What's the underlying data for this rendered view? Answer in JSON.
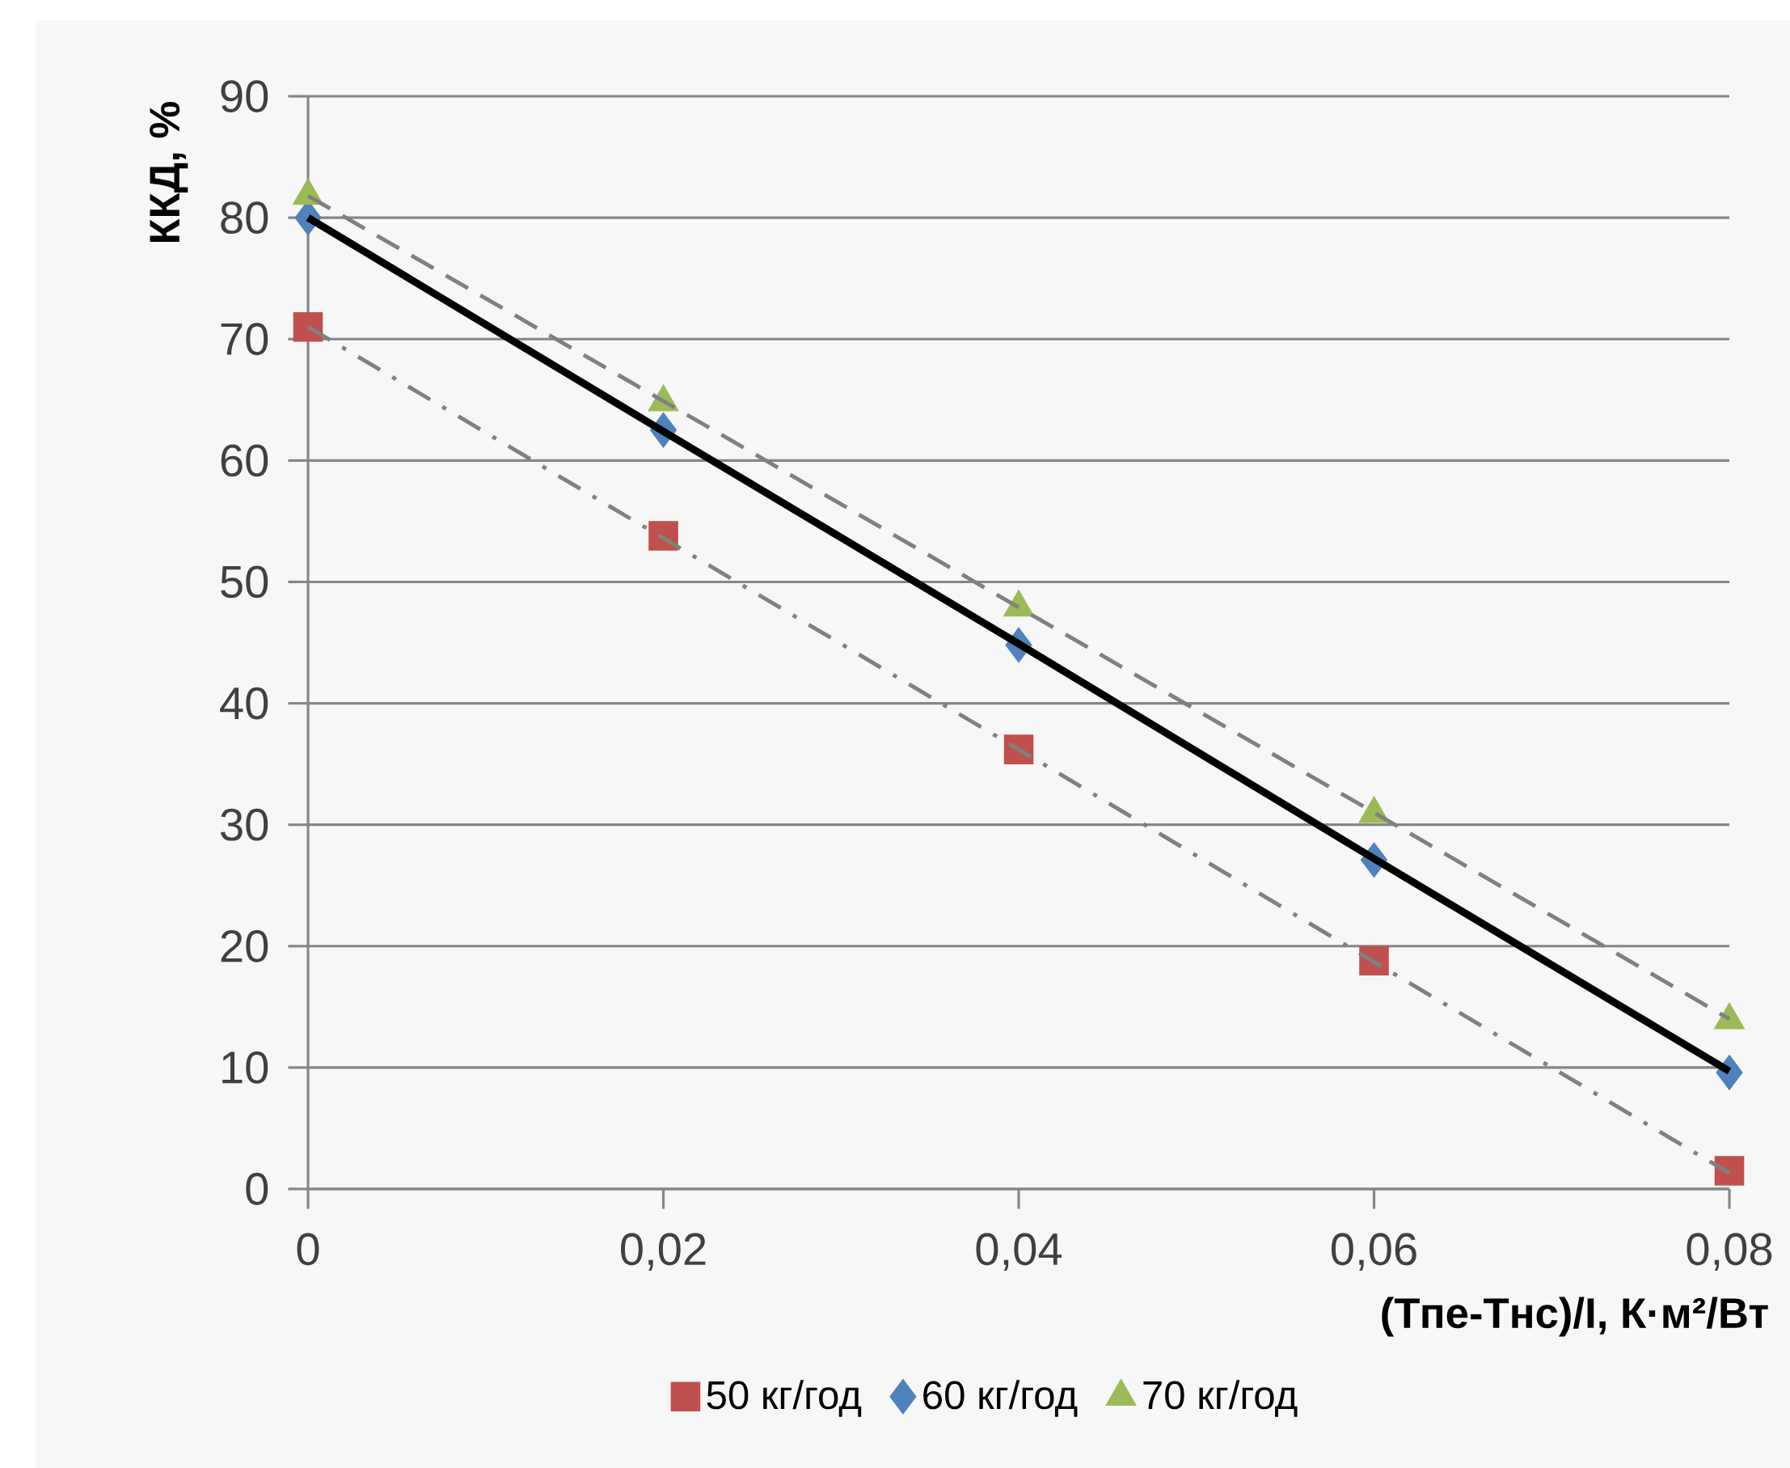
{
  "chart_data": {
    "type": "scatter",
    "xlabel": "(Тпе-Тнс)/I, К·м²/Вт",
    "ylabel": "ККД, %",
    "xlim": [
      0,
      0.08
    ],
    "ylim": [
      0,
      90
    ],
    "xticks": [
      0,
      {
        "value": 0.02,
        "label": "0,02"
      },
      {
        "value": 0.04,
        "label": "0,04"
      },
      {
        "value": 0.06,
        "label": "0,06"
      },
      {
        "value": 0.08,
        "label": "0,08"
      }
    ],
    "yticks": [
      0,
      10,
      20,
      30,
      40,
      50,
      60,
      70,
      80,
      90
    ],
    "grid": "y",
    "legend": "bottom",
    "x": [
      0,
      0.02,
      0.04,
      0.06,
      0.08
    ],
    "series": [
      {
        "name": "50 кг/год",
        "color": "#c0504d",
        "marker": "square",
        "values": [
          71.0,
          53.8,
          36.2,
          18.8,
          1.5
        ]
      },
      {
        "name": "60 кг/год",
        "color": "#4f81bd",
        "marker": "diamond",
        "values": [
          80.0,
          62.5,
          44.8,
          27.1,
          9.6
        ]
      },
      {
        "name": "70 кг/год",
        "color": "#9bbb59",
        "marker": "triangle",
        "values": [
          81.8,
          64.8,
          47.9,
          30.9,
          13.9
        ]
      },
      {
        "type": "line",
        "color": "#808080",
        "line_style": "dashdot",
        "marker": "none",
        "values": [
          71.0,
          53.6,
          36.2,
          18.7,
          1.3
        ]
      },
      {
        "type": "line",
        "color": "#000000",
        "line_style": "solid",
        "marker": "none",
        "values": [
          80.0,
          62.4,
          44.9,
          27.2,
          9.7
        ]
      },
      {
        "type": "line",
        "color": "#808080",
        "line_style": "dashed",
        "marker": "none",
        "values": [
          81.8,
          64.9,
          47.9,
          31.0,
          14.0
        ]
      }
    ]
  }
}
